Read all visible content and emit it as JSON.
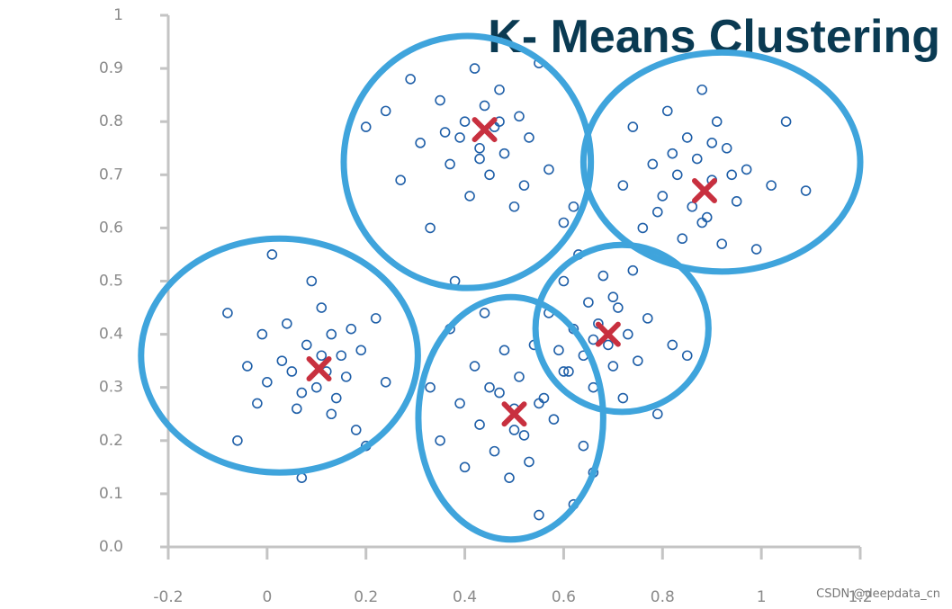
{
  "chart_data": {
    "type": "scatter",
    "title": "K- Means Clustering",
    "watermark": "CSDN @deepdata_cn",
    "xlim": [
      -0.2,
      1.2
    ],
    "ylim": [
      0,
      1
    ],
    "xticks": [
      -0.2,
      0,
      0.2,
      0.4,
      0.6,
      0.8,
      1,
      1.2
    ],
    "yticks": [
      {
        "value": 0,
        "label": "0.0"
      },
      0.1,
      0.2,
      0.3,
      0.4,
      0.5,
      0.6,
      0.7,
      0.8,
      0.9,
      1
    ],
    "point_color": "#1f5fa8",
    "centroid_color": "#c8303f",
    "ellipse_color": "#3fa4dc",
    "series": [
      {
        "x": [
          -0.08,
          -0.06,
          -0.04,
          -0.02,
          0.0,
          0.01,
          0.03,
          0.04,
          0.06,
          0.07,
          0.08,
          0.09,
          0.1,
          0.11,
          0.12,
          0.13,
          0.14,
          0.15,
          0.16,
          0.17,
          0.18,
          0.19,
          0.2,
          0.22,
          0.24,
          -0.01,
          0.05,
          0.07,
          0.11,
          0.13
        ],
        "y": [
          0.44,
          0.2,
          0.34,
          0.27,
          0.31,
          0.55,
          0.35,
          0.42,
          0.26,
          0.13,
          0.38,
          0.5,
          0.3,
          0.45,
          0.33,
          0.4,
          0.28,
          0.36,
          0.32,
          0.41,
          0.22,
          0.37,
          0.19,
          0.43,
          0.31,
          0.4,
          0.33,
          0.29,
          0.36,
          0.25
        ]
      },
      {
        "x": [
          0.2,
          0.24,
          0.27,
          0.29,
          0.31,
          0.33,
          0.35,
          0.37,
          0.38,
          0.4,
          0.41,
          0.42,
          0.43,
          0.44,
          0.45,
          0.46,
          0.47,
          0.48,
          0.5,
          0.51,
          0.53,
          0.55,
          0.57,
          0.6,
          0.62,
          0.39,
          0.43,
          0.47,
          0.52,
          0.36
        ],
        "y": [
          0.79,
          0.82,
          0.69,
          0.88,
          0.76,
          0.6,
          0.84,
          0.72,
          0.5,
          0.8,
          0.66,
          0.9,
          0.75,
          0.83,
          0.7,
          0.79,
          0.86,
          0.74,
          0.64,
          0.81,
          0.77,
          0.91,
          0.71,
          0.61,
          0.64,
          0.77,
          0.73,
          0.8,
          0.68,
          0.78
        ]
      },
      {
        "x": [
          0.72,
          0.74,
          0.76,
          0.78,
          0.8,
          0.81,
          0.83,
          0.84,
          0.85,
          0.86,
          0.87,
          0.88,
          0.89,
          0.9,
          0.91,
          0.92,
          0.93,
          0.95,
          0.97,
          0.99,
          1.02,
          1.05,
          1.09,
          0.82,
          0.88,
          0.94,
          0.79,
          0.9
        ],
        "y": [
          0.68,
          0.79,
          0.6,
          0.72,
          0.66,
          0.82,
          0.7,
          0.58,
          0.77,
          0.64,
          0.73,
          0.86,
          0.62,
          0.69,
          0.8,
          0.57,
          0.75,
          0.65,
          0.71,
          0.56,
          0.68,
          0.8,
          0.67,
          0.74,
          0.61,
          0.7,
          0.63,
          0.76
        ]
      },
      {
        "x": [
          0.57,
          0.59,
          0.6,
          0.61,
          0.62,
          0.63,
          0.64,
          0.65,
          0.66,
          0.67,
          0.68,
          0.69,
          0.7,
          0.71,
          0.72,
          0.73,
          0.74,
          0.75,
          0.77,
          0.79,
          0.82,
          0.85,
          0.66,
          0.7
        ],
        "y": [
          0.44,
          0.37,
          0.5,
          0.33,
          0.41,
          0.55,
          0.36,
          0.46,
          0.3,
          0.42,
          0.51,
          0.38,
          0.34,
          0.45,
          0.28,
          0.4,
          0.52,
          0.35,
          0.43,
          0.25,
          0.38,
          0.36,
          0.39,
          0.47
        ]
      },
      {
        "x": [
          0.33,
          0.35,
          0.37,
          0.39,
          0.4,
          0.42,
          0.43,
          0.44,
          0.46,
          0.47,
          0.48,
          0.49,
          0.5,
          0.51,
          0.52,
          0.53,
          0.54,
          0.55,
          0.56,
          0.58,
          0.6,
          0.62,
          0.64,
          0.66,
          0.45,
          0.5,
          0.55
        ],
        "y": [
          0.3,
          0.2,
          0.41,
          0.27,
          0.15,
          0.34,
          0.23,
          0.44,
          0.18,
          0.29,
          0.37,
          0.13,
          0.26,
          0.32,
          0.21,
          0.16,
          0.38,
          0.06,
          0.28,
          0.24,
          0.33,
          0.08,
          0.19,
          0.14,
          0.3,
          0.22,
          0.27
        ]
      }
    ],
    "centroids": {
      "x": [
        0.105,
        0.44,
        0.885,
        0.69,
        0.5
      ],
      "y": [
        0.335,
        0.785,
        0.67,
        0.4,
        0.25
      ]
    },
    "ellipses": [
      {
        "cx": 0.025,
        "cy": 0.36,
        "rx": 0.28,
        "ry": 0.22
      },
      {
        "cx": 0.405,
        "cy": 0.724,
        "rx": 0.25,
        "ry": 0.237
      },
      {
        "cx": 0.92,
        "cy": 0.724,
        "rx": 0.28,
        "ry": 0.206
      },
      {
        "cx": 0.718,
        "cy": 0.411,
        "rx": 0.175,
        "ry": 0.157
      },
      {
        "cx": 0.493,
        "cy": 0.242,
        "rx": 0.187,
        "ry": 0.228
      }
    ]
  }
}
